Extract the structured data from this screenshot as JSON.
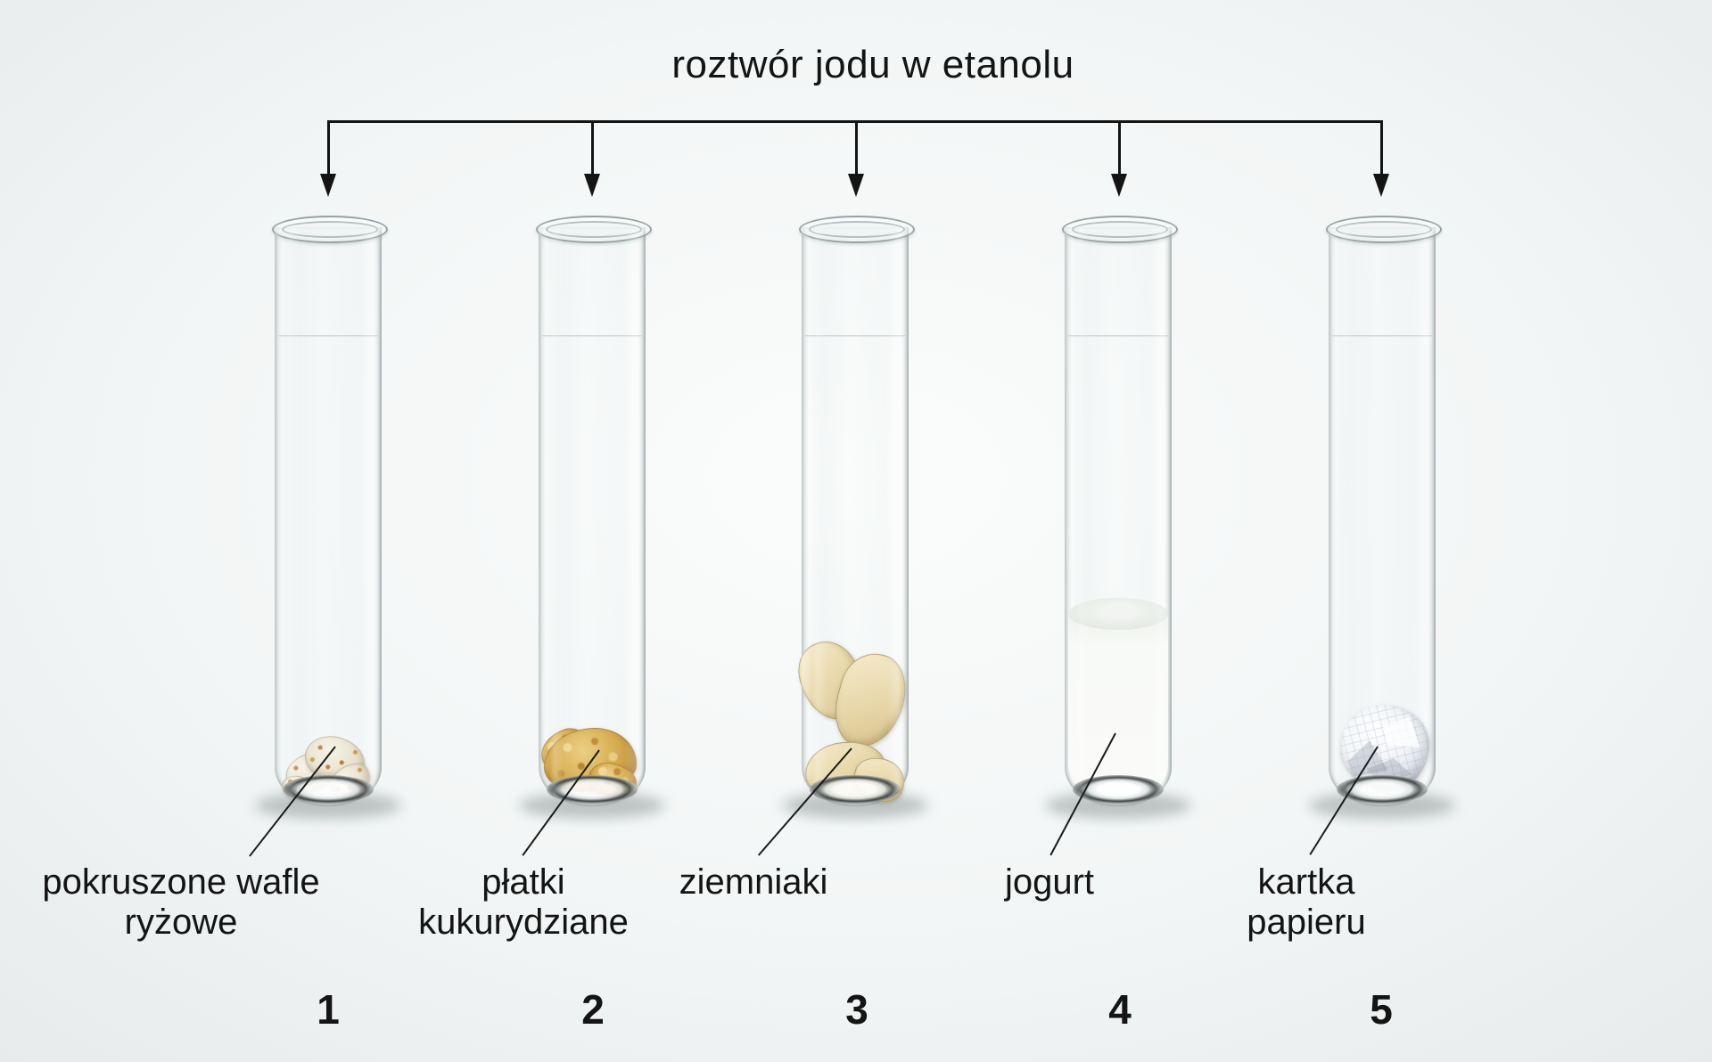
{
  "title": "roztwór jodu w etanolu",
  "tubes": [
    {
      "number": "1",
      "content": "pokruszone wafle ryżowe",
      "label_lines": [
        "pokruszone wafle",
        "ryżowe"
      ]
    },
    {
      "number": "2",
      "content": "płatki kukurydziane",
      "label_lines": [
        "płatki",
        "kukurydziane"
      ]
    },
    {
      "number": "3",
      "content": "ziemniaki",
      "label_lines": [
        "ziemniaki",
        ""
      ]
    },
    {
      "number": "4",
      "content": "jogurt",
      "label_lines": [
        "jogurt",
        ""
      ]
    },
    {
      "number": "5",
      "content": "kartka papieru",
      "label_lines": [
        "kartka",
        "papieru"
      ]
    }
  ],
  "colors": {
    "line": "#141414",
    "text": "#141414",
    "background": "#f3f6f6",
    "rice_wafers": "#e9e3d2",
    "corn_flakes": "#d4a94e",
    "potatoes": "#e6d5a6",
    "yogurt": "#f8faf7",
    "paper": "#f1f3f6"
  }
}
